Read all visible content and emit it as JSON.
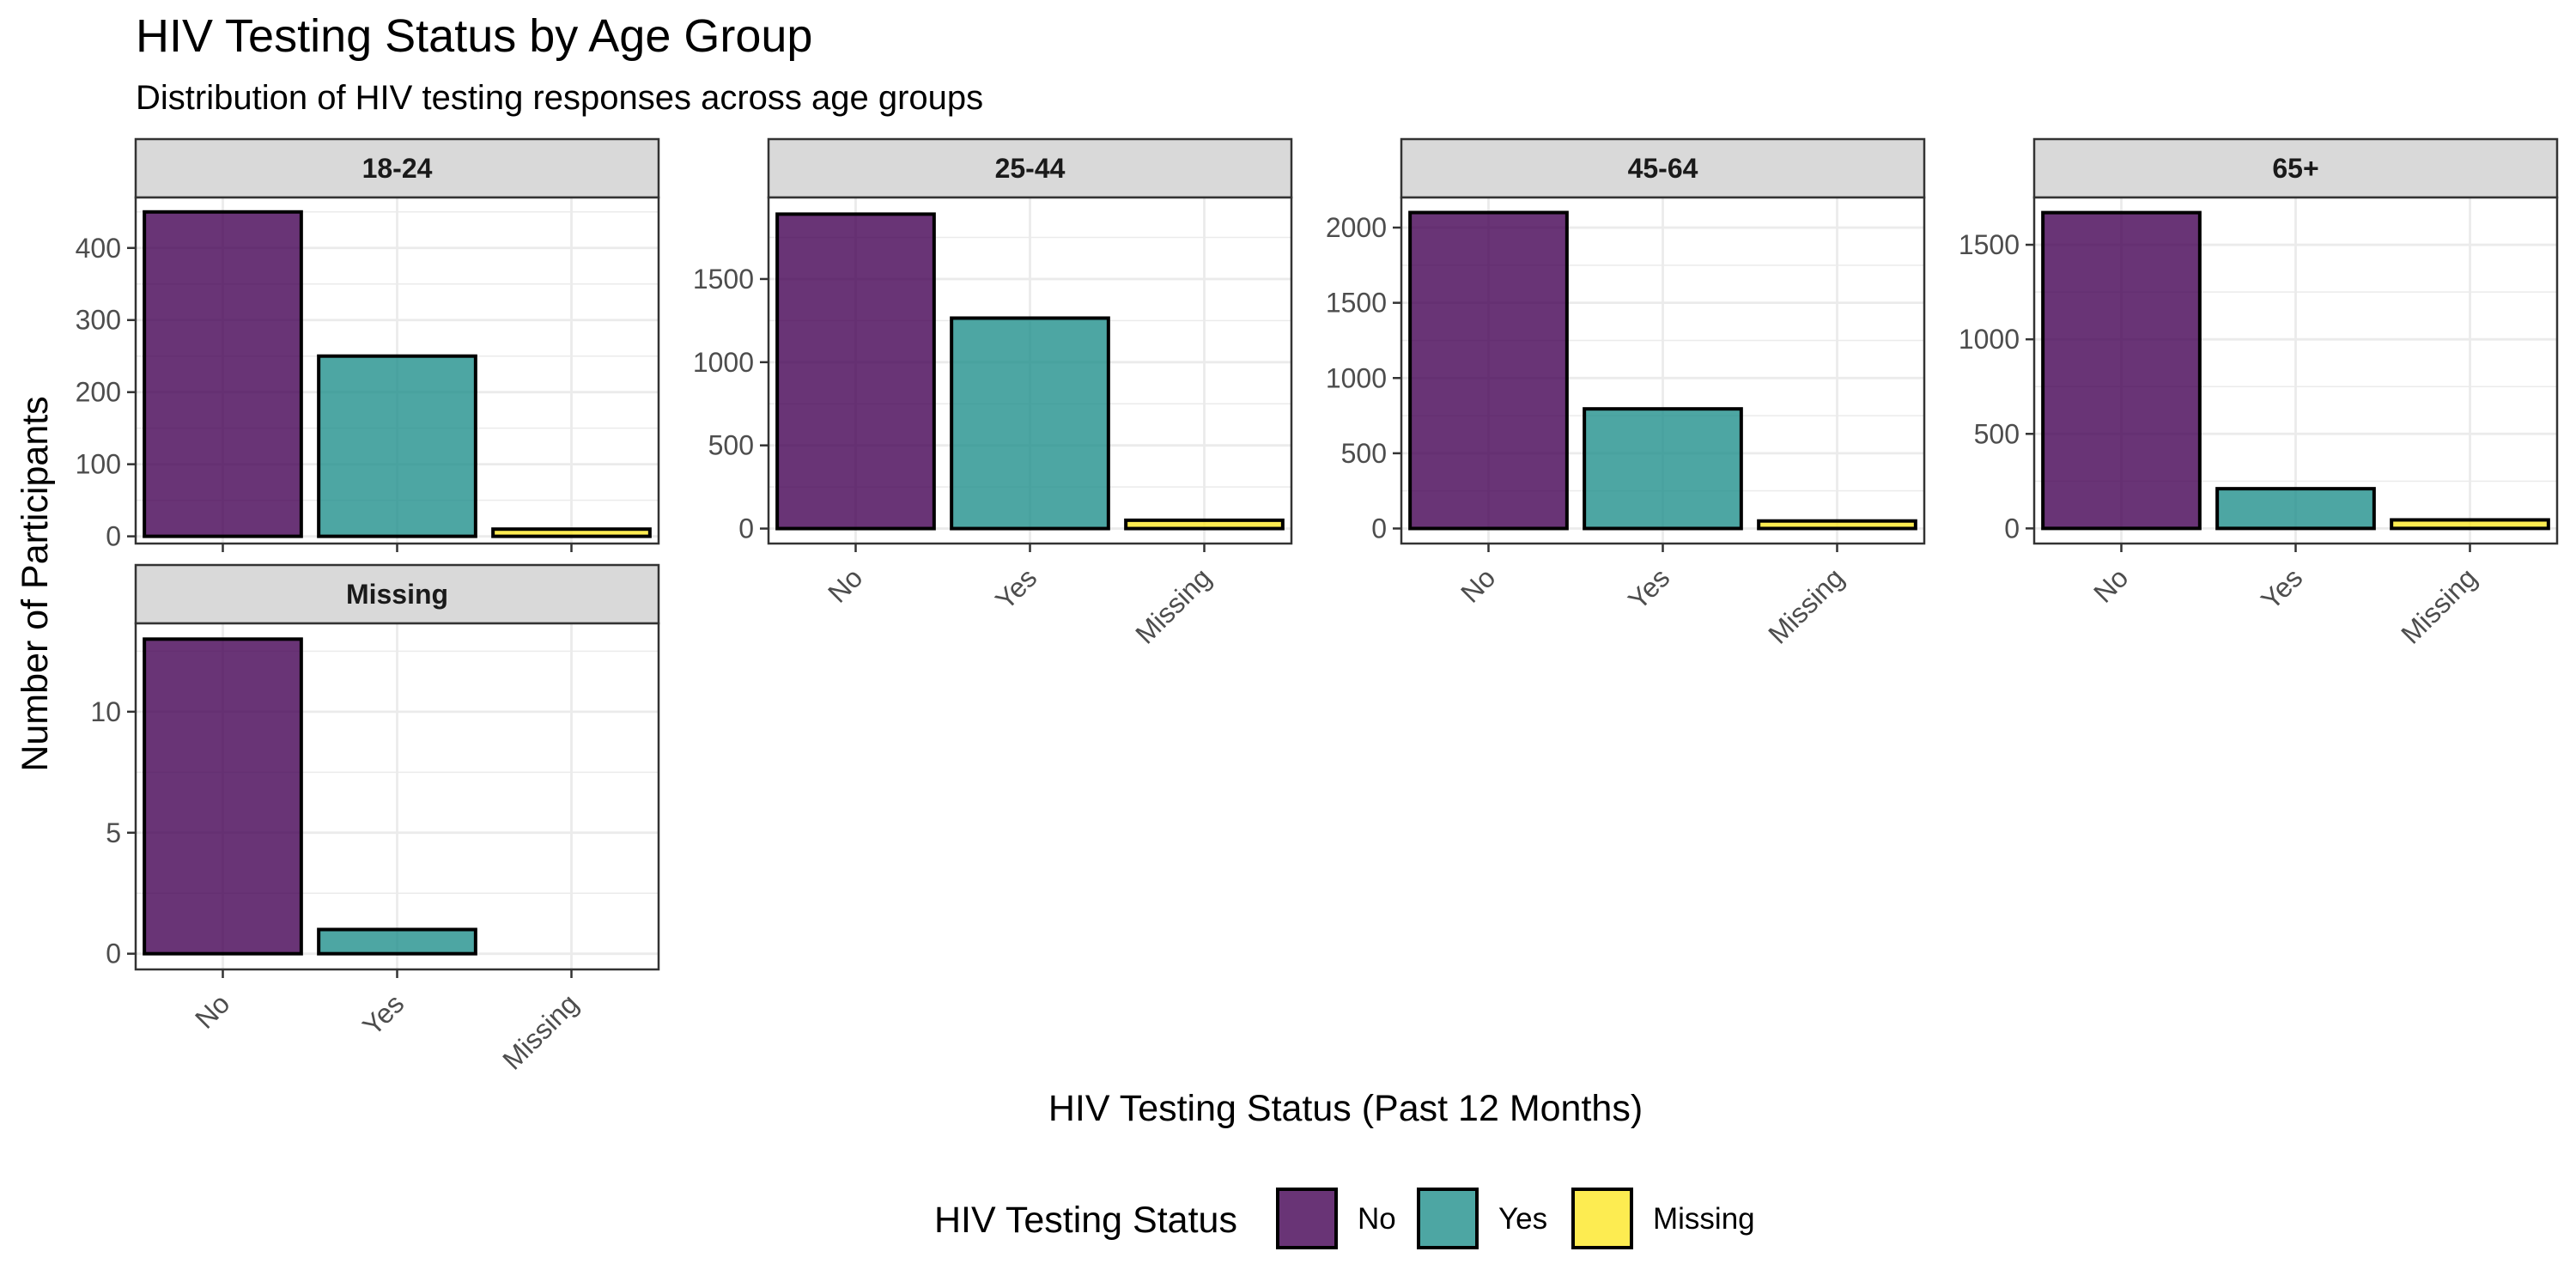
{
  "title": "HIV Testing Status by Age Group",
  "subtitle": "Distribution of HIV testing responses across age groups",
  "colors": {
    "No": "#440154",
    "Yes": "#21908C",
    "Missing": "#FDE725"
  },
  "legend": {
    "title": "HIV Testing Status",
    "position": "bottom",
    "items": [
      "No",
      "Yes",
      "Missing"
    ]
  },
  "chart_data": {
    "type": "bar",
    "facet_by": "age group",
    "scales": "free_y",
    "grid": true,
    "xlabel": "HIV Testing Status (Past 12 Months)",
    "ylabel": "Number of Participants",
    "categories": [
      "No",
      "Yes",
      "Missing"
    ],
    "panels": [
      {
        "label": "18-24",
        "values": [
          450,
          250,
          10
        ],
        "ylim": [
          -10,
          470
        ],
        "ticks": [
          0,
          100,
          200,
          300,
          400
        ]
      },
      {
        "label": "25-44",
        "values": [
          1890,
          1265,
          50
        ],
        "ylim": [
          -90,
          1990
        ],
        "ticks": [
          0,
          500,
          1000,
          1500
        ]
      },
      {
        "label": "45-64",
        "values": [
          2100,
          795,
          50
        ],
        "ylim": [
          -100,
          2200
        ],
        "ticks": [
          0,
          500,
          1000,
          1500,
          2000
        ]
      },
      {
        "label": "65+",
        "values": [
          1670,
          210,
          45
        ],
        "ylim": [
          -80,
          1750
        ],
        "ticks": [
          0,
          500,
          1000,
          1500
        ]
      },
      {
        "label": "Missing",
        "values": [
          13,
          1,
          0
        ],
        "ylim": [
          -0.65,
          13.65
        ],
        "ticks": [
          0,
          5,
          10
        ]
      }
    ]
  }
}
